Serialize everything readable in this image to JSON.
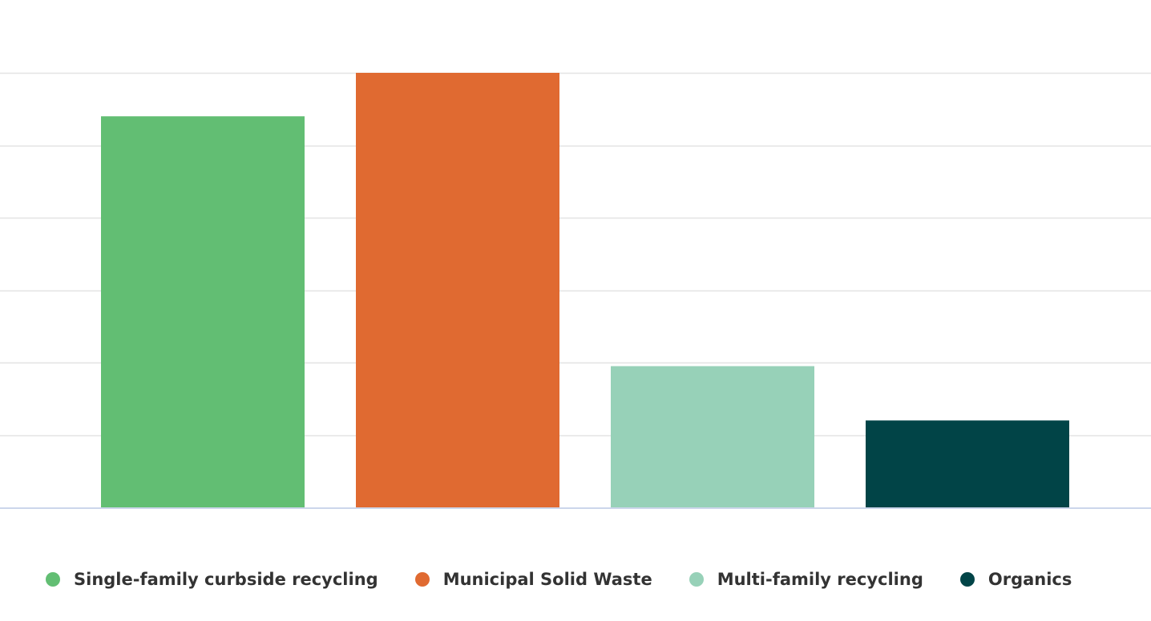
{
  "chart_data": {
    "type": "bar",
    "categories": [
      "Single-family curbside recycling",
      "Municipal Solid Waste",
      "Multi-family recycling",
      "Organics"
    ],
    "series": [
      {
        "values": [
          5.4,
          6.0,
          1.95,
          1.2
        ],
        "colors": [
          "#62be73",
          "#e06a31",
          "#97d1b8",
          "#014447"
        ]
      }
    ],
    "ylim": [
      0,
      6
    ],
    "grid": true,
    "legend": {
      "position": "bottom-left",
      "items": [
        {
          "label": "Single-family curbside recycling",
          "color": "#62be73"
        },
        {
          "label": "Municipal Solid Waste",
          "color": "#e06a31"
        },
        {
          "label": "Multi-family recycling",
          "color": "#97d1b8"
        },
        {
          "label": "Organics",
          "color": "#014447"
        }
      ]
    }
  }
}
